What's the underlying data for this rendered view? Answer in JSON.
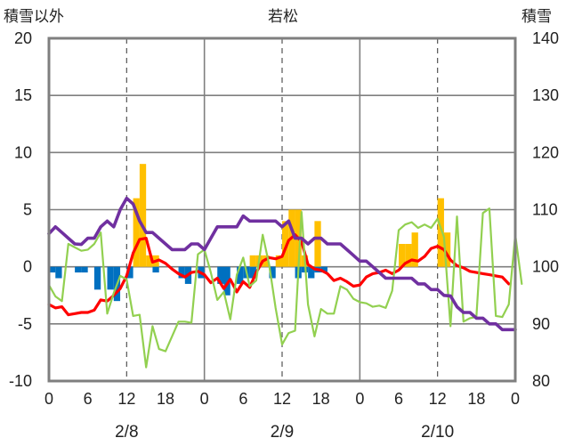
{
  "chart_data": {
    "type": "bar+line",
    "title": "若松",
    "left_axis_label": "積雪以外",
    "right_axis_label": "積雪",
    "left_ylim": [
      -10,
      20
    ],
    "left_yticks": [
      "20",
      "15",
      "10",
      "5",
      "0",
      "-5",
      "-10"
    ],
    "right_ylim": [
      80,
      140
    ],
    "right_yticks": [
      "140",
      "130",
      "120",
      "110",
      "100",
      "90",
      "80"
    ],
    "x_hours": [
      0,
      72
    ],
    "x_ticks": [
      "0",
      "6",
      "12",
      "18",
      "0",
      "6",
      "12",
      "18",
      "0",
      "6",
      "12",
      "18",
      "0"
    ],
    "dates": [
      "2/8",
      "2/9",
      "2/10"
    ],
    "grid": "vertical dashed every 12h, solid day separators, horizontal lines every 5",
    "series": [
      {
        "kind": "bar",
        "color": "#ffc000",
        "points": [
          [
            13.5,
            6
          ],
          [
            14.5,
            9
          ],
          [
            15.5,
            1
          ],
          [
            16.5,
            1
          ],
          [
            31.5,
            1
          ],
          [
            32.5,
            1
          ],
          [
            33.5,
            1
          ],
          [
            35.5,
            1
          ],
          [
            36.5,
            4
          ],
          [
            37.5,
            5
          ],
          [
            38.5,
            5
          ],
          [
            39.5,
            1
          ],
          [
            41.5,
            4
          ],
          [
            54.5,
            2
          ],
          [
            55.5,
            2
          ],
          [
            56.5,
            3
          ],
          [
            60.5,
            6
          ],
          [
            61.5,
            3
          ]
        ]
      },
      {
        "kind": "bar",
        "color": "#0070c0",
        "points": [
          [
            0.5,
            -0.5
          ],
          [
            1.5,
            -1
          ],
          [
            4.5,
            -0.5
          ],
          [
            5.5,
            -0.5
          ],
          [
            7.5,
            -2
          ],
          [
            9.5,
            -2
          ],
          [
            10.5,
            -3
          ],
          [
            12.5,
            -1
          ],
          [
            16.5,
            -0.5
          ],
          [
            20.5,
            -1
          ],
          [
            21.5,
            -1.5
          ],
          [
            23.5,
            -1
          ],
          [
            26.5,
            -1.5
          ],
          [
            27.5,
            -2.5
          ],
          [
            29.5,
            -1.5
          ],
          [
            30.5,
            -1
          ],
          [
            31.5,
            -1
          ],
          [
            34.5,
            -1
          ],
          [
            38.5,
            -1
          ],
          [
            39.5,
            -0.5
          ],
          [
            40.5,
            -1
          ],
          [
            41.5,
            -0.5
          ],
          [
            42.5,
            -0.5
          ]
        ]
      },
      {
        "kind": "line",
        "color": "#ff0000",
        "axis": "left",
        "points": [
          [
            0,
            -3.3
          ],
          [
            1,
            -3.6
          ],
          [
            2,
            -3.5
          ],
          [
            3,
            -4.2
          ],
          [
            4,
            -4.1
          ],
          [
            5,
            -4.0
          ],
          [
            6,
            -4.0
          ],
          [
            7,
            -3.8
          ],
          [
            8,
            -2.9
          ],
          [
            9,
            -3.0
          ],
          [
            10,
            -2.5
          ],
          [
            11,
            -1.9
          ],
          [
            12,
            -0.8
          ],
          [
            13,
            1.2
          ],
          [
            14,
            2.4
          ],
          [
            15,
            2.5
          ],
          [
            16,
            0.4
          ],
          [
            17,
            0.6
          ],
          [
            18,
            0.3
          ],
          [
            19,
            -0.2
          ],
          [
            20,
            -0.6
          ],
          [
            21,
            -0.9
          ],
          [
            22,
            -0.5
          ],
          [
            23,
            -0.4
          ],
          [
            24,
            -0.7
          ],
          [
            25,
            -1.4
          ],
          [
            26,
            -1.0
          ],
          [
            27,
            -1.9
          ],
          [
            28,
            -1.1
          ],
          [
            29,
            -2.2
          ],
          [
            30,
            -1.3
          ],
          [
            31,
            -1.8
          ],
          [
            32,
            -0.5
          ],
          [
            33,
            0.5
          ],
          [
            34,
            0.8
          ],
          [
            35,
            0.7
          ],
          [
            36,
            0.9
          ],
          [
            37,
            2.3
          ],
          [
            38,
            2.8
          ],
          [
            39,
            2.2
          ],
          [
            40,
            0.2
          ],
          [
            41,
            -0.2
          ],
          [
            42,
            -0.3
          ],
          [
            43,
            -0.6
          ],
          [
            44,
            -1.2
          ],
          [
            45,
            -1.0
          ],
          [
            46,
            -1.3
          ],
          [
            47,
            -1.7
          ],
          [
            48,
            -1.6
          ],
          [
            49,
            -0.9
          ],
          [
            50,
            -0.6
          ],
          [
            51,
            -0.5
          ],
          [
            52,
            -0.3
          ],
          [
            53,
            -0.6
          ],
          [
            54,
            -0.3
          ],
          [
            55,
            0.3
          ],
          [
            56,
            0.6
          ],
          [
            57,
            0.5
          ],
          [
            58,
            0.9
          ],
          [
            59,
            1.6
          ],
          [
            60,
            1.8
          ],
          [
            61,
            1.5
          ],
          [
            62,
            0.6
          ],
          [
            63,
            0.1
          ],
          [
            64,
            -0.1
          ],
          [
            65,
            -0.4
          ],
          [
            66,
            -0.5
          ],
          [
            67,
            -0.6
          ],
          [
            68,
            -0.7
          ],
          [
            69,
            -0.8
          ],
          [
            70,
            -0.9
          ],
          [
            71,
            -1.5
          ]
        ]
      },
      {
        "kind": "line",
        "color": "#92d050",
        "axis": "left",
        "points": [
          [
            0,
            -1.6
          ],
          [
            1,
            -2.6
          ],
          [
            2,
            -3.0
          ],
          [
            3,
            2.0
          ],
          [
            4,
            1.7
          ],
          [
            5,
            1.4
          ],
          [
            6,
            1.5
          ],
          [
            7,
            2.0
          ],
          [
            8,
            3.0
          ],
          [
            9,
            -4.1
          ],
          [
            10,
            -2.3
          ],
          [
            11,
            -0.8
          ],
          [
            12,
            -1.1
          ],
          [
            13,
            -4.3
          ],
          [
            14,
            -4.2
          ],
          [
            15,
            -8.8
          ],
          [
            16,
            -5.2
          ],
          [
            17,
            -7.2
          ],
          [
            18,
            -7.4
          ],
          [
            19,
            -6.1
          ],
          [
            20,
            -4.8
          ],
          [
            21,
            -4.8
          ],
          [
            22,
            -4.9
          ],
          [
            23,
            1.1
          ],
          [
            24,
            1.5
          ],
          [
            25,
            -0.5
          ],
          [
            26,
            -2.9
          ],
          [
            27,
            -2.2
          ],
          [
            28,
            -4.6
          ],
          [
            29,
            -0.7
          ],
          [
            30,
            0.8
          ],
          [
            31,
            -1.7
          ],
          [
            32,
            -1.2
          ],
          [
            33,
            2.8
          ],
          [
            34,
            0.2
          ],
          [
            35,
            -3.6
          ],
          [
            36,
            -6.8
          ],
          [
            37,
            -5.8
          ],
          [
            38,
            -5.6
          ],
          [
            39,
            4.8
          ],
          [
            40,
            -3.3
          ],
          [
            41,
            -6.1
          ],
          [
            42,
            -3.7
          ],
          [
            43,
            -4.1
          ],
          [
            44,
            -4.1
          ],
          [
            45,
            -1.7
          ],
          [
            46,
            -2.0
          ],
          [
            47,
            -2.8
          ],
          [
            48,
            -3.1
          ],
          [
            49,
            -3.2
          ],
          [
            50,
            -3.5
          ],
          [
            51,
            -3.4
          ],
          [
            52,
            -3.6
          ],
          [
            53,
            -2.1
          ],
          [
            54,
            3.2
          ],
          [
            55,
            3.7
          ],
          [
            56,
            3.9
          ],
          [
            57,
            3.4
          ],
          [
            58,
            3.7
          ],
          [
            59,
            3.4
          ],
          [
            60,
            4.2
          ],
          [
            61,
            2.6
          ],
          [
            62,
            -5.2
          ],
          [
            63,
            4.4
          ],
          [
            64,
            -4.8
          ],
          [
            65,
            -4.5
          ],
          [
            66,
            -4.4
          ],
          [
            67,
            4.7
          ],
          [
            68,
            5.1
          ],
          [
            69,
            -4.3
          ],
          [
            70,
            -4.4
          ],
          [
            71,
            -3.3
          ],
          [
            72,
            2.8
          ],
          [
            73,
            -1.5
          ]
        ]
      },
      {
        "kind": "line",
        "color": "#7030a0",
        "axis": "right",
        "points": [
          [
            0,
            105.8
          ],
          [
            1,
            107.0
          ],
          [
            2,
            106.0
          ],
          [
            3,
            105.0
          ],
          [
            4,
            104.0
          ],
          [
            5,
            103.9
          ],
          [
            6,
            105.0
          ],
          [
            7,
            105.0
          ],
          [
            8,
            107.0
          ],
          [
            9,
            108.0
          ],
          [
            10,
            107.0
          ],
          [
            11,
            110.0
          ],
          [
            12,
            112.0
          ],
          [
            13,
            111.0
          ],
          [
            14,
            108.0
          ],
          [
            15,
            106.0
          ],
          [
            16,
            106.0
          ],
          [
            17,
            105.0
          ],
          [
            18,
            104.0
          ],
          [
            19,
            103.0
          ],
          [
            20,
            103.0
          ],
          [
            21,
            103.0
          ],
          [
            22,
            104.0
          ],
          [
            23,
            104.0
          ],
          [
            24,
            103.0
          ],
          [
            25,
            105.0
          ],
          [
            26,
            107.0
          ],
          [
            27,
            107.0
          ],
          [
            28,
            107.0
          ],
          [
            29,
            107.0
          ],
          [
            30,
            108.9
          ],
          [
            31,
            108.0
          ],
          [
            32,
            108.0
          ],
          [
            33,
            108.0
          ],
          [
            34,
            108.0
          ],
          [
            35,
            108.0
          ],
          [
            36,
            107.0
          ],
          [
            37,
            108.0
          ],
          [
            38,
            105.0
          ],
          [
            39,
            105.0
          ],
          [
            40,
            104.0
          ],
          [
            41,
            105.0
          ],
          [
            42,
            105.0
          ],
          [
            43,
            104.0
          ],
          [
            44,
            104.0
          ],
          [
            45,
            104.0
          ],
          [
            46,
            103.0
          ],
          [
            47,
            102.0
          ],
          [
            48,
            101.0
          ],
          [
            49,
            101.0
          ],
          [
            50,
            100.0
          ],
          [
            51,
            99.0
          ],
          [
            52,
            98.0
          ],
          [
            53,
            98.0
          ],
          [
            54,
            98.0
          ],
          [
            55,
            98.0
          ],
          [
            56,
            98.0
          ],
          [
            57,
            97.0
          ],
          [
            58,
            97.0
          ],
          [
            59,
            96.0
          ],
          [
            60,
            96.0
          ],
          [
            61,
            95.0
          ],
          [
            62,
            94.9
          ],
          [
            63,
            93.0
          ],
          [
            64,
            92.0
          ],
          [
            65,
            92.0
          ],
          [
            66,
            91.0
          ],
          [
            67,
            91.0
          ],
          [
            68,
            90.0
          ],
          [
            69,
            90.0
          ],
          [
            70,
            89.0
          ],
          [
            71,
            89.0
          ],
          [
            72,
            89.0
          ]
        ]
      }
    ]
  }
}
